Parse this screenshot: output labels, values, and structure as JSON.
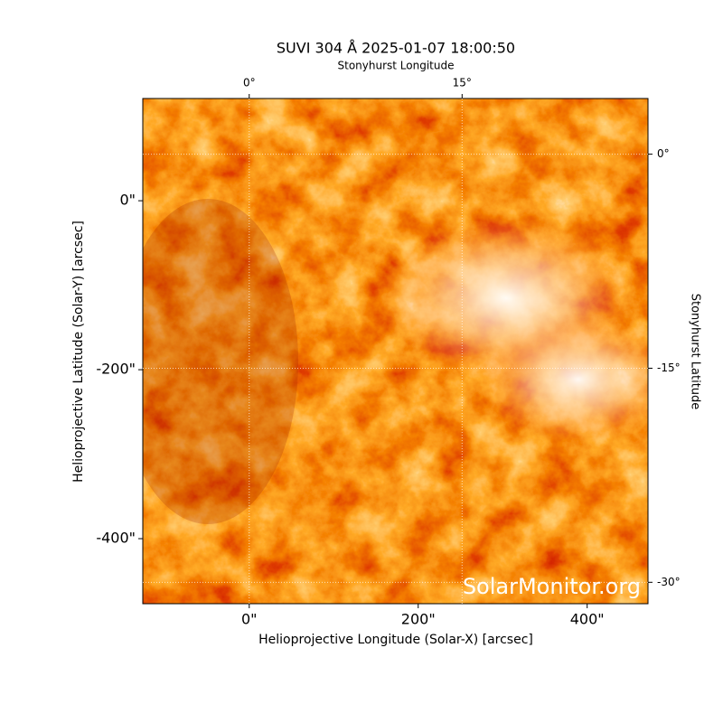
{
  "chart_data": {
    "type": "image",
    "title": "SUVI 304 Å 2025-01-07 18:00:50",
    "x_label": "Helioprojective Longitude (Solar-X) [arcsec]",
    "y_label": "Helioprojective Latitude (Solar-Y) [arcsec]",
    "x2_label": "Stonyhurst Longitude",
    "y2_label": "Stonyhurst Latitude",
    "watermark": "SolarMonitor.org",
    "xlim": [
      -126,
      472
    ],
    "ylim": [
      -477,
      121
    ],
    "xticks": [
      {
        "value": 0,
        "label": "0\""
      },
      {
        "value": 200,
        "label": "200\""
      },
      {
        "value": 400,
        "label": "400\""
      }
    ],
    "yticks": [
      {
        "value": 0,
        "label": "0\""
      },
      {
        "value": -200,
        "label": "-200\""
      },
      {
        "value": -400,
        "label": "-400\""
      }
    ],
    "x2lim": [
      -7.5,
      28.1
    ],
    "y2lim": [
      -31.5,
      3.9
    ],
    "x2ticks": [
      {
        "value": 0,
        "label": "0°"
      },
      {
        "value": 15,
        "label": "15°"
      }
    ],
    "y2ticks": [
      {
        "value": 0,
        "label": "0°"
      },
      {
        "value": -15,
        "label": "-15°"
      },
      {
        "value": -30,
        "label": "-30°"
      }
    ],
    "grid": true
  }
}
